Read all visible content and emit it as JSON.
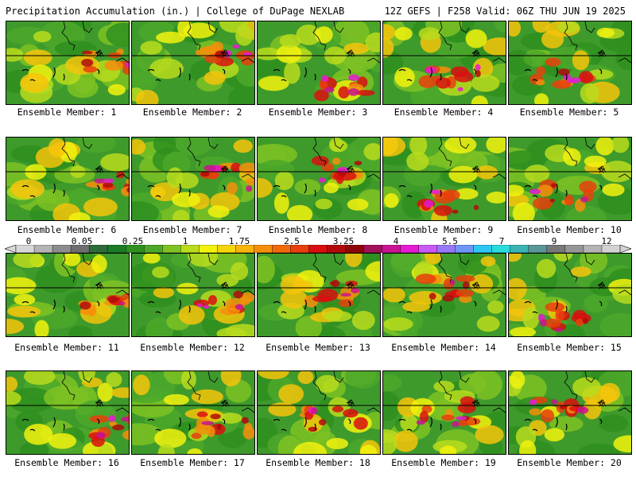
{
  "header": {
    "title": "Precipitation Accumulation (in.) | College of DuPage NEXLAB",
    "run_info": "12Z GEFS | F258 Valid: 06Z THU JUN 19 2025"
  },
  "colorbar": {
    "tick_labels": [
      "0",
      "0.05",
      "0.25",
      "1",
      "1.75",
      "2.5",
      "3.25",
      "4",
      "5.5",
      "7",
      "9",
      "12"
    ],
    "colors": [
      "#d8d8d8",
      "#b4b4b4",
      "#8c8c8c",
      "#6e6e6e",
      "#2e6b3a",
      "#1a7a28",
      "#2f8f1f",
      "#4ca82a",
      "#7ec223",
      "#b9dc1d",
      "#f2f20e",
      "#f5d60c",
      "#f7b40a",
      "#f58f0a",
      "#f06a0a",
      "#e8400c",
      "#d80f0f",
      "#b20a0a",
      "#8c0606",
      "#a0125a",
      "#c81491",
      "#e61ad2",
      "#c85af5",
      "#9678f8",
      "#6e96f6",
      "#2ec6f2",
      "#28dcdc",
      "#3cb4b4",
      "#5a9696",
      "#787878",
      "#969696",
      "#b4b4b4",
      "#d2d2d2"
    ]
  },
  "panels": [
    {
      "label": "Ensemble Member: 1"
    },
    {
      "label": "Ensemble Member: 2"
    },
    {
      "label": "Ensemble Member: 3"
    },
    {
      "label": "Ensemble Member: 4"
    },
    {
      "label": "Ensemble Member: 5"
    },
    {
      "label": "Ensemble Member: 6"
    },
    {
      "label": "Ensemble Member: 7"
    },
    {
      "label": "Ensemble Member: 8"
    },
    {
      "label": "Ensemble Member: 9"
    },
    {
      "label": "Ensemble Member: 10"
    },
    {
      "label": "Ensemble Member: 11"
    },
    {
      "label": "Ensemble Member: 12"
    },
    {
      "label": "Ensemble Member: 13"
    },
    {
      "label": "Ensemble Member: 14"
    },
    {
      "label": "Ensemble Member: 15"
    },
    {
      "label": "Ensemble Member: 16"
    },
    {
      "label": "Ensemble Member: 17"
    },
    {
      "label": "Ensemble Member: 18"
    },
    {
      "label": "Ensemble Member: 19"
    },
    {
      "label": "Ensemble Member: 20"
    }
  ]
}
